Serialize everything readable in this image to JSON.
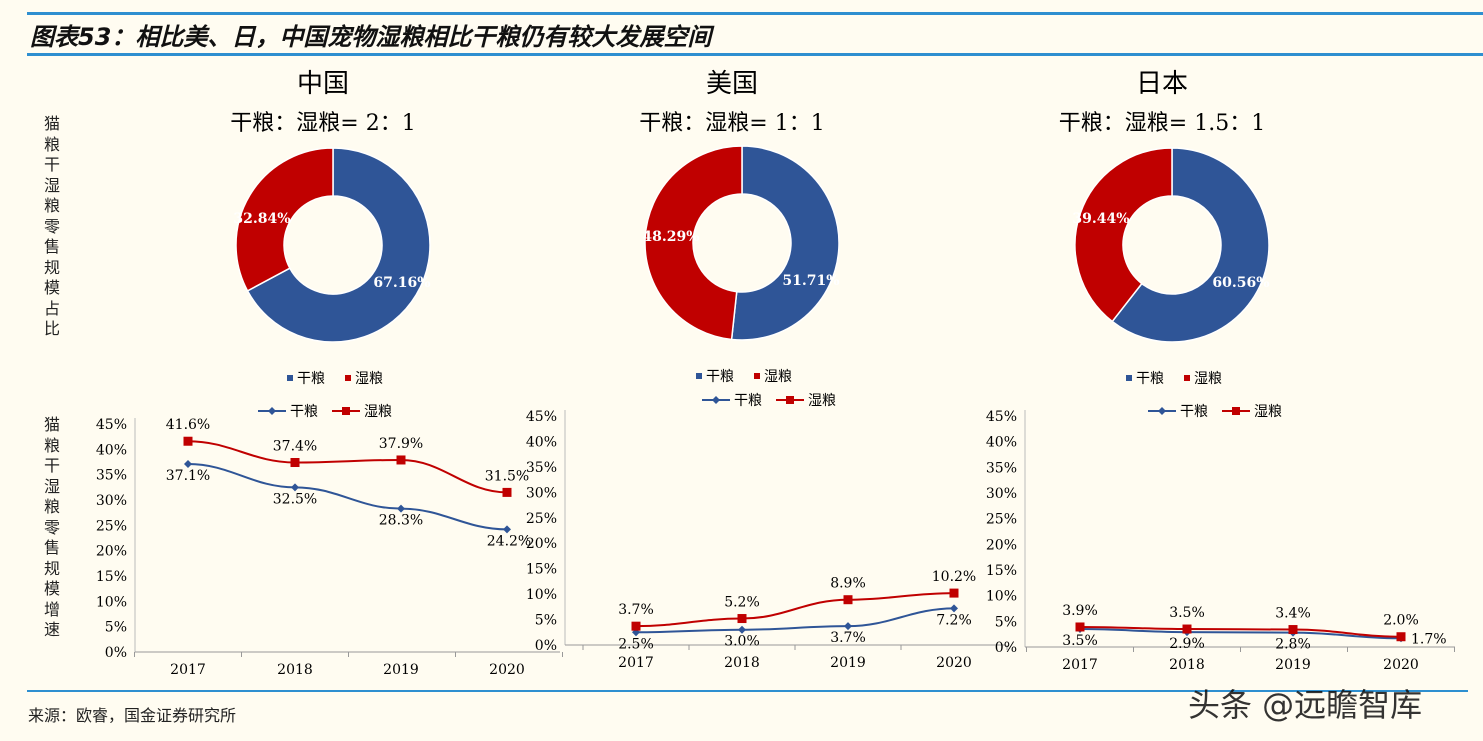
{
  "title": "图表53：相比美、日，中国宠物湿粮相比干粮仍有较大发展空间",
  "left_label_top": "猫粮干湿粮零售规模占比",
  "left_label_bottom": "猫粮干湿粮零售规模增速",
  "source": "来源：欧睿，国金证券研究所",
  "watermark": "头条 @远瞻智库",
  "colors": {
    "dry": "#2F5597",
    "wet": "#C00000",
    "rule": "#2E8FD0",
    "background": "#FFFCF1"
  },
  "chart_data": [
    {
      "type": "pie",
      "donut": true,
      "title": "中国",
      "subtitle": "干粮：湿粮= 2：1",
      "categories": [
        "干粮",
        "湿粮"
      ],
      "values": [
        67.16,
        32.84
      ],
      "labels": [
        "67.16%",
        "32.84%"
      ],
      "legend": "bottom"
    },
    {
      "type": "pie",
      "donut": true,
      "title": "美国",
      "subtitle": "干粮：湿粮= 1：1",
      "categories": [
        "干粮",
        "湿粮"
      ],
      "values": [
        51.71,
        48.29
      ],
      "labels": [
        "51.71%",
        "48.29%"
      ],
      "legend": "bottom"
    },
    {
      "type": "pie",
      "donut": true,
      "title": "日本",
      "subtitle": "干粮：湿粮= 1.5：1",
      "categories": [
        "干粮",
        "湿粮"
      ],
      "values": [
        60.56,
        39.44
      ],
      "labels": [
        "60.56%",
        "39.44%"
      ],
      "legend": "bottom"
    },
    {
      "type": "line",
      "categories": [
        "2017",
        "2018",
        "2019",
        "2020"
      ],
      "ylim": [
        0,
        45
      ],
      "yticks": [
        "0%",
        "5%",
        "10%",
        "15%",
        "20%",
        "25%",
        "30%",
        "35%",
        "40%",
        "45%"
      ],
      "legend": "top",
      "series": [
        {
          "name": "干粮",
          "values": [
            37.1,
            32.5,
            28.3,
            24.2
          ],
          "labels": [
            "37.1%",
            "32.5%",
            "28.3%",
            "24.2%"
          ]
        },
        {
          "name": "湿粮",
          "values": [
            41.6,
            37.4,
            37.9,
            31.5
          ],
          "labels": [
            "41.6%",
            "37.4%",
            "37.9%",
            "31.5%"
          ]
        }
      ]
    },
    {
      "type": "line",
      "categories": [
        "2017",
        "2018",
        "2019",
        "2020"
      ],
      "ylim": [
        0,
        45
      ],
      "yticks": [
        "0%",
        "5%",
        "10%",
        "15%",
        "20%",
        "25%",
        "30%",
        "35%",
        "40%",
        "45%"
      ],
      "legend": "top",
      "series": [
        {
          "name": "干粮",
          "values": [
            2.5,
            3.0,
            3.7,
            7.2
          ],
          "labels": [
            "2.5%",
            "3.0%",
            "3.7%",
            "7.2%"
          ]
        },
        {
          "name": "湿粮",
          "values": [
            3.7,
            5.2,
            8.9,
            10.2
          ],
          "labels": [
            "3.7%",
            "5.2%",
            "8.9%",
            "10.2%"
          ]
        }
      ]
    },
    {
      "type": "line",
      "categories": [
        "2017",
        "2018",
        "2019",
        "2020"
      ],
      "ylim": [
        0,
        45
      ],
      "yticks": [
        "0%",
        "5%",
        "10%",
        "15%",
        "20%",
        "25%",
        "30%",
        "35%",
        "40%",
        "45%"
      ],
      "legend": "top",
      "series": [
        {
          "name": "干粮",
          "values": [
            3.5,
            2.9,
            2.8,
            1.7
          ],
          "labels": [
            "3.5%",
            "2.9%",
            "2.8%",
            "1.7%"
          ]
        },
        {
          "name": "湿粮",
          "values": [
            3.9,
            3.5,
            3.4,
            2.0
          ],
          "labels": [
            "3.9%",
            "3.5%",
            "3.4%",
            "2.0%"
          ]
        }
      ]
    }
  ]
}
